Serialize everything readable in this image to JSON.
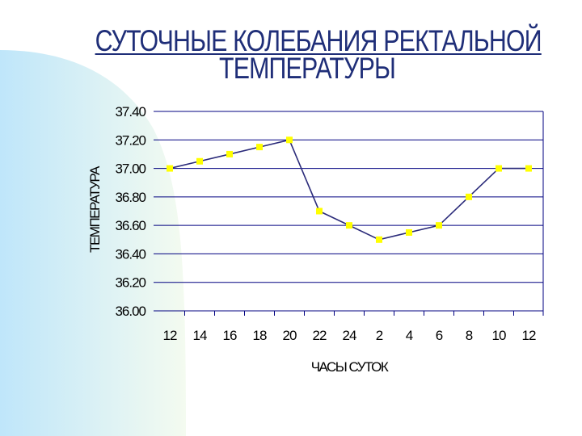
{
  "title_lines": [
    "СУТОЧНЫЕ КОЛЕБАНИЯ РЕКТАЛЬНОЙ",
    "ТЕМПЕРАТУРЫ"
  ],
  "colors": {
    "title": "#1f2e78",
    "line": "#2b2b7a",
    "marker": "#ffff00",
    "grid": "#000080",
    "bg_gradient": "#bfe6fa"
  },
  "chart_data": {
    "type": "line",
    "title": "СУТОЧНЫЕ КОЛЕБАНИЯ РЕКТАЛЬНОЙ ТЕМПЕРАТУРЫ",
    "xlabel": "ЧАСЫ СУТОК",
    "ylabel": "ТЕМПЕРАТУРА",
    "categories": [
      "12",
      "14",
      "16",
      "18",
      "20",
      "22",
      "24",
      "2",
      "4",
      "6",
      "8",
      "10",
      "12"
    ],
    "values": [
      37.0,
      37.05,
      37.1,
      37.15,
      37.2,
      36.7,
      36.6,
      36.5,
      36.55,
      36.6,
      36.8,
      37.0,
      37.0
    ],
    "yticks": [
      "37.40",
      "37.20",
      "37.00",
      "36.80",
      "36.60",
      "36.40",
      "36.20",
      "36.00"
    ],
    "ylim": [
      36.0,
      37.4
    ],
    "grid": true,
    "legend": "none"
  }
}
